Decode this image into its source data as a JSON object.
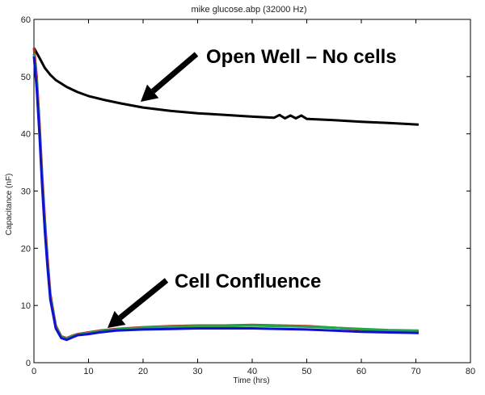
{
  "chart_data": {
    "type": "line",
    "title": "mike glucose.abp (32000 Hz)",
    "xlabel": "Time (hrs)",
    "ylabel": "Capacitance (nF)",
    "xlim": [
      0,
      80
    ],
    "ylim": [
      0,
      60
    ],
    "xticks": [
      "0",
      "10",
      "20",
      "30",
      "40",
      "50",
      "60",
      "70",
      "80"
    ],
    "yticks": [
      "0",
      "10",
      "20",
      "30",
      "40",
      "50",
      "60"
    ],
    "grid": false,
    "series": [
      {
        "color": "#000000",
        "x": [
          0,
          1,
          2,
          3,
          4,
          6,
          8,
          10,
          13,
          16,
          20,
          25,
          30,
          35,
          40,
          44,
          45,
          46,
          47,
          48,
          49,
          50,
          55,
          60,
          65,
          70.5
        ],
        "y": [
          55,
          53.3,
          51.5,
          50.3,
          49.4,
          48.2,
          47.3,
          46.6,
          45.9,
          45.3,
          44.6,
          44.0,
          43.6,
          43.3,
          43.0,
          42.8,
          43.3,
          42.7,
          43.2,
          42.7,
          43.2,
          42.6,
          42.4,
          42.1,
          41.9,
          41.6
        ]
      },
      {
        "color": "#d62020",
        "x": [
          0,
          0.5,
          1,
          1.5,
          2,
          2.5,
          3,
          4,
          5,
          6,
          7,
          8,
          10,
          12,
          15,
          20,
          25,
          30,
          35,
          40,
          45,
          50,
          55,
          60,
          65,
          70.5
        ],
        "y": [
          55,
          50,
          42,
          33,
          25,
          18,
          12,
          6.5,
          4.6,
          4.3,
          4.7,
          5.0,
          5.3,
          5.6,
          5.9,
          6.2,
          6.4,
          6.5,
          6.5,
          6.6,
          6.5,
          6.4,
          6.1,
          5.8,
          5.6,
          5.4
        ]
      },
      {
        "color": "#1fa84a",
        "x": [
          0,
          0.5,
          1,
          1.5,
          2,
          2.5,
          3,
          4,
          5,
          6,
          7,
          8,
          10,
          12,
          15,
          20,
          25,
          30,
          35,
          40,
          45,
          50,
          55,
          60,
          65,
          70.5
        ],
        "y": [
          54,
          49,
          41,
          32,
          24,
          17,
          11.5,
          6.3,
          4.5,
          4.2,
          4.6,
          4.9,
          5.2,
          5.5,
          5.8,
          6.1,
          6.3,
          6.4,
          6.4,
          6.5,
          6.4,
          6.3,
          6.1,
          5.9,
          5.7,
          5.6
        ]
      },
      {
        "color": "#1010d0",
        "x": [
          0,
          0.5,
          1,
          1.5,
          2,
          2.5,
          3,
          4,
          5,
          6,
          7,
          8,
          10,
          12,
          15,
          20,
          25,
          30,
          35,
          40,
          45,
          50,
          55,
          60,
          65,
          70.5
        ],
        "y": [
          53.5,
          48,
          40,
          31,
          23,
          16.5,
          11,
          6.0,
          4.3,
          4.0,
          4.4,
          4.8,
          5.0,
          5.3,
          5.6,
          5.8,
          5.9,
          6.0,
          6.0,
          6.0,
          5.9,
          5.8,
          5.6,
          5.4,
          5.3,
          5.2
        ]
      }
    ],
    "annotations": [
      {
        "text": "Open Well – No cells"
      },
      {
        "text": "Cell Confluence"
      }
    ]
  }
}
